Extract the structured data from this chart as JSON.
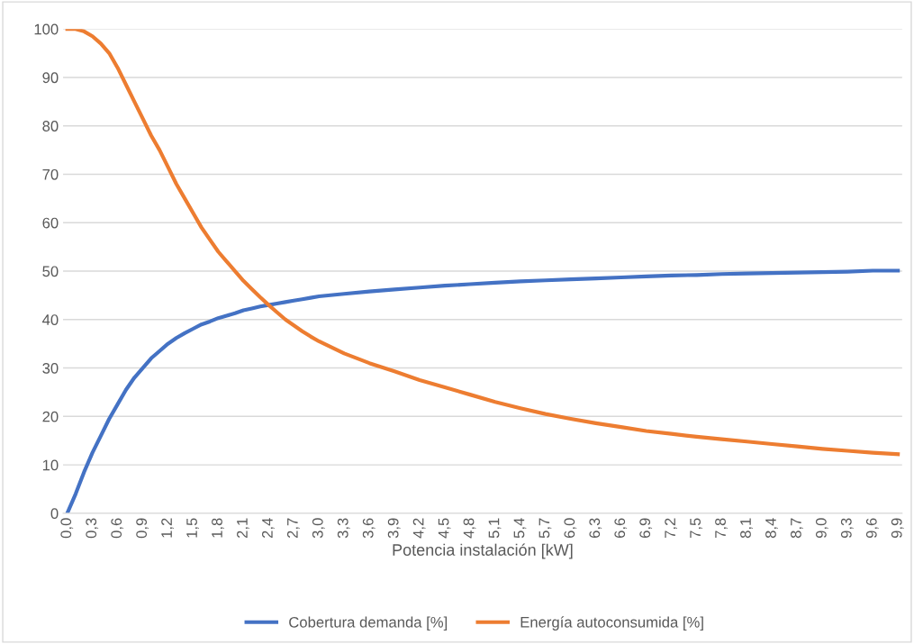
{
  "chart_data": {
    "type": "line",
    "xlabel": "Potencia instalación [kW]",
    "x": [
      0,
      0.1,
      0.2,
      0.3,
      0.4,
      0.5,
      0.6,
      0.7,
      0.8,
      0.9,
      1.0,
      1.1,
      1.2,
      1.3,
      1.4,
      1.5,
      1.6,
      1.7,
      1.8,
      1.9,
      2.0,
      2.1,
      2.2,
      2.3,
      2.4,
      2.5,
      2.6,
      2.7,
      2.8,
      2.9,
      3.0,
      3.3,
      3.6,
      3.9,
      4.2,
      4.5,
      4.8,
      5.1,
      5.4,
      5.7,
      6.0,
      6.3,
      6.6,
      6.9,
      7.2,
      7.5,
      7.8,
      8.1,
      8.4,
      8.7,
      9.0,
      9.3,
      9.6,
      9.9
    ],
    "series": [
      {
        "name": "Cobertura demanda [%]",
        "color": "#4472c4",
        "values": [
          0,
          4,
          8.5,
          12.5,
          16,
          19.5,
          22.5,
          25.5,
          28,
          30,
          32,
          33.5,
          35,
          36.2,
          37.2,
          38.1,
          39,
          39.6,
          40.3,
          40.8,
          41.3,
          41.9,
          42.3,
          42.7,
          43.0,
          43.3,
          43.6,
          43.9,
          44.2,
          44.5,
          44.8,
          45.3,
          45.8,
          46.2,
          46.6,
          47.0,
          47.3,
          47.6,
          47.9,
          48.1,
          48.3,
          48.5,
          48.7,
          48.9,
          49.1,
          49.2,
          49.4,
          49.5,
          49.6,
          49.7,
          49.8,
          49.9,
          50.1,
          50.1
        ]
      },
      {
        "name": "Energía autoconsumida [%]",
        "color": "#ed7d31",
        "values": [
          100,
          100,
          99.5,
          98.5,
          97,
          95,
          92,
          88.5,
          85,
          81.5,
          78,
          75,
          71.5,
          68,
          65,
          62,
          59,
          56.5,
          54,
          52,
          50,
          48,
          46.3,
          44.6,
          43.0,
          41.5,
          40,
          38.8,
          37.6,
          36.5,
          35.5,
          33,
          31,
          29.3,
          27.5,
          26,
          24.5,
          23,
          21.7,
          20.5,
          19.5,
          18.6,
          17.8,
          17,
          16.4,
          15.8,
          15.3,
          14.8,
          14.3,
          13.8,
          13.3,
          12.9,
          12.5,
          12.2
        ]
      }
    ],
    "xlim": [
      -0.05,
      9.95
    ],
    "xticks": [
      {
        "value": 0,
        "label": "0,0"
      },
      {
        "value": 0.3,
        "label": "0,3"
      },
      {
        "value": 0.6,
        "label": "0,6"
      },
      {
        "value": 0.9,
        "label": "0,9"
      },
      {
        "value": 1.2,
        "label": "1,2"
      },
      {
        "value": 1.5,
        "label": "1,5"
      },
      {
        "value": 1.8,
        "label": "1,8"
      },
      {
        "value": 2.1,
        "label": "2,1"
      },
      {
        "value": 2.4,
        "label": "2,4"
      },
      {
        "value": 2.7,
        "label": "2,7"
      },
      {
        "value": 3.0,
        "label": "3,0"
      },
      {
        "value": 3.3,
        "label": "3,3"
      },
      {
        "value": 3.6,
        "label": "3,6"
      },
      {
        "value": 3.9,
        "label": "3,9"
      },
      {
        "value": 4.2,
        "label": "4,2"
      },
      {
        "value": 4.5,
        "label": "4,5"
      },
      {
        "value": 4.8,
        "label": "4,8"
      },
      {
        "value": 5.1,
        "label": "5,1"
      },
      {
        "value": 5.4,
        "label": "5,4"
      },
      {
        "value": 5.7,
        "label": "5,7"
      },
      {
        "value": 6.0,
        "label": "6,0"
      },
      {
        "value": 6.3,
        "label": "6,3"
      },
      {
        "value": 6.6,
        "label": "6,6"
      },
      {
        "value": 6.9,
        "label": "6,9"
      },
      {
        "value": 7.2,
        "label": "7,2"
      },
      {
        "value": 7.5,
        "label": "7,5"
      },
      {
        "value": 7.8,
        "label": "7,8"
      },
      {
        "value": 8.1,
        "label": "8,1"
      },
      {
        "value": 8.4,
        "label": "8,4"
      },
      {
        "value": 8.7,
        "label": "8,7"
      },
      {
        "value": 9.0,
        "label": "9,0"
      },
      {
        "value": 9.3,
        "label": "9,3"
      },
      {
        "value": 9.6,
        "label": "9,6"
      },
      {
        "value": 9.9,
        "label": "9,9"
      }
    ],
    "ylim": [
      0,
      100
    ],
    "yticks": [
      0,
      10,
      20,
      30,
      40,
      50,
      60,
      70,
      80,
      90,
      100
    ],
    "grid": "y",
    "legend": "bottom",
    "marker": "none",
    "line_style": "solid"
  }
}
